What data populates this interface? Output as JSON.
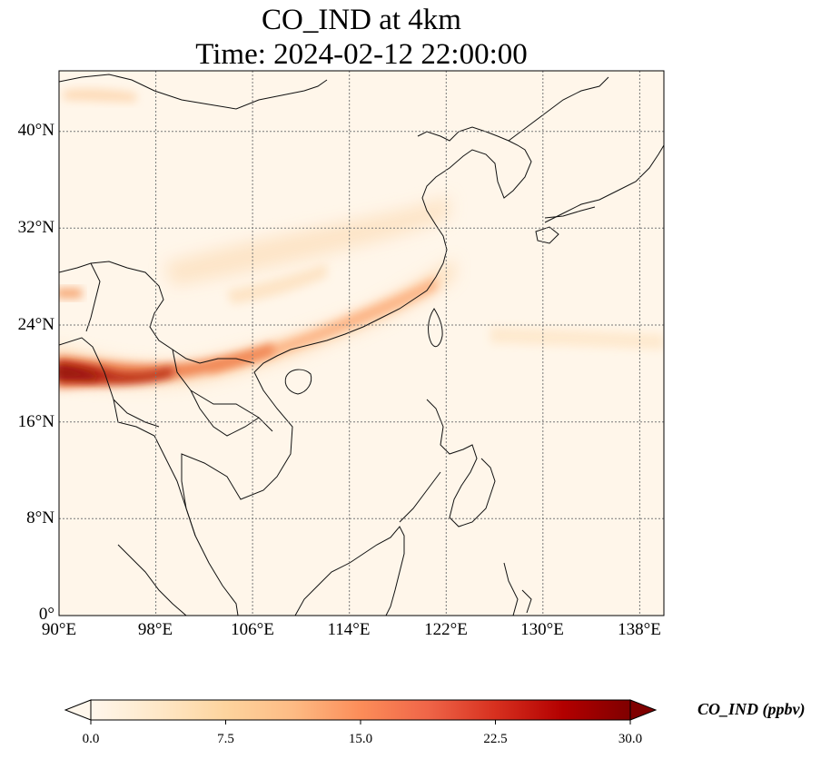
{
  "title": {
    "line1": "CO_IND at 4km",
    "line2": "Time: 2024-02-12 22:00:00"
  },
  "map": {
    "lon_range_deg_e": [
      90,
      140
    ],
    "lat_range_deg_n": [
      0,
      45
    ],
    "lon_ticks": [
      "90°E",
      "98°E",
      "106°E",
      "114°E",
      "122°E",
      "130°E",
      "138°E"
    ],
    "lat_ticks": [
      "0°",
      "8°N",
      "16°N",
      "24°N",
      "32°N",
      "40°N"
    ],
    "gridlines": "dotted",
    "variable": "CO_IND",
    "units": "ppbv",
    "feature_notes": "High concentrations over northern Myanmar/Bangladesh around 20°N spreading east along southern China coast; weaker band toward central/eastern China and East China Sea; low elsewhere."
  },
  "colorbar": {
    "label": "CO_IND (ppbv)",
    "min": 0.0,
    "max": 30.0,
    "ticks": [
      "0.0",
      "7.5",
      "15.0",
      "22.5",
      "30.0"
    ],
    "colormap": "OrRd",
    "extend": "both",
    "colors": [
      "#fff7ec",
      "#fee8c8",
      "#fdd49e",
      "#fdbb84",
      "#fc8d59",
      "#ef6548",
      "#d7301f",
      "#b30000",
      "#7f0000"
    ]
  }
}
